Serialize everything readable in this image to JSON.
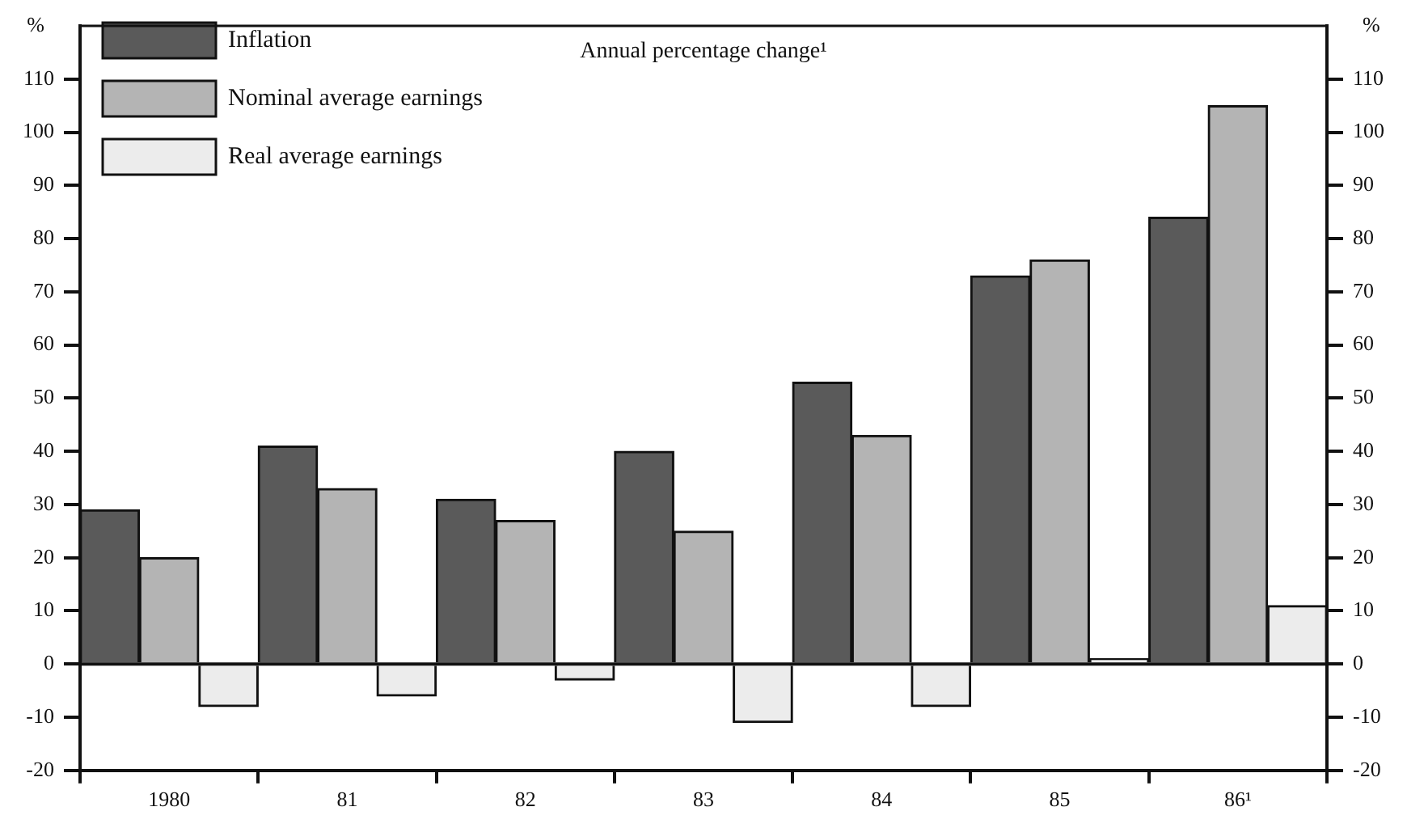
{
  "chart_data": {
    "type": "bar",
    "title": "Annual percentage change¹",
    "ylabel": "%",
    "y2label": "%",
    "categories": [
      "1980",
      "81",
      "82",
      "83",
      "84",
      "85",
      "86¹"
    ],
    "series": [
      {
        "name": "Inflation",
        "color": "#5a5a5a",
        "values": [
          29,
          41,
          31,
          40,
          53,
          73,
          84
        ]
      },
      {
        "name": "Nominal average earnings",
        "color": "#b4b4b4",
        "values": [
          20,
          33,
          27,
          25,
          43,
          76,
          105
        ]
      },
      {
        "name": "Real average earnings",
        "color": "#ececec",
        "values": [
          -8,
          -6,
          -3,
          -11,
          -8,
          1,
          11
        ]
      }
    ],
    "ylim": [
      -20,
      120
    ],
    "yticks": [
      -20,
      -10,
      0,
      10,
      20,
      30,
      40,
      50,
      60,
      70,
      80,
      90,
      100,
      110
    ],
    "y2lim": [
      -20,
      120
    ],
    "y2ticks": [
      -20,
      -10,
      0,
      10,
      20,
      30,
      40,
      50,
      60,
      70,
      80,
      90,
      100,
      110
    ],
    "ref_lines": [
      {
        "axis": "y",
        "value": 0
      }
    ],
    "grid": false,
    "legend": "top left"
  }
}
